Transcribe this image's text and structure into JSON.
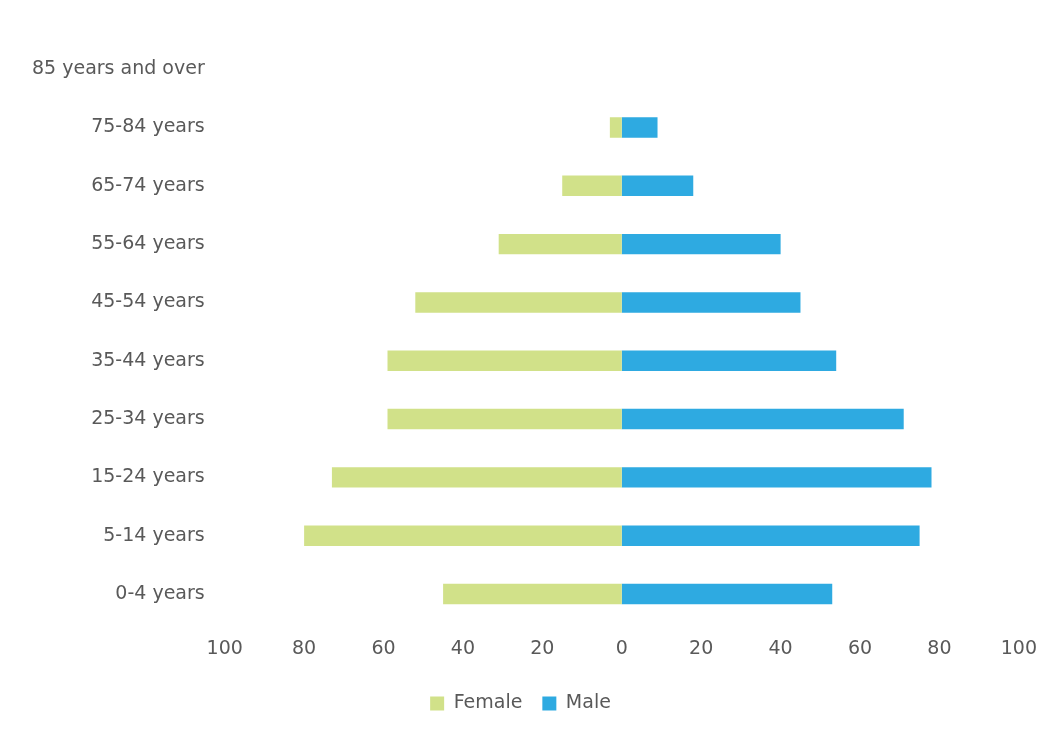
{
  "chart_data": {
    "type": "bar",
    "orientation": "horizontal",
    "stacked": true,
    "categories": [
      "85 years and over",
      "75-84 years",
      "65-74 years",
      "55-64 years",
      "45-54 years",
      "35-44 years",
      "25-34 years",
      "15-24 years",
      "5-14 years",
      "0-4 years"
    ],
    "series": [
      {
        "name": "Female",
        "color": "#d1e189",
        "values": [
          0,
          -3,
          -15,
          -31,
          -52,
          -59,
          -59,
          -73,
          -80,
          -45
        ]
      },
      {
        "name": "Male",
        "color": "#2eaae1",
        "values": [
          0,
          9,
          18,
          40,
          45,
          54,
          71,
          78,
          75,
          53
        ]
      }
    ],
    "xlim": [
      -100,
      100
    ],
    "xticks": [
      {
        "value": -100,
        "label": "100"
      },
      {
        "value": -80,
        "label": "80"
      },
      {
        "value": -60,
        "label": "60"
      },
      {
        "value": -40,
        "label": "40"
      },
      {
        "value": -20,
        "label": "20"
      },
      0,
      20,
      40,
      60,
      80,
      100
    ],
    "grid": false,
    "legend": "bottom"
  }
}
